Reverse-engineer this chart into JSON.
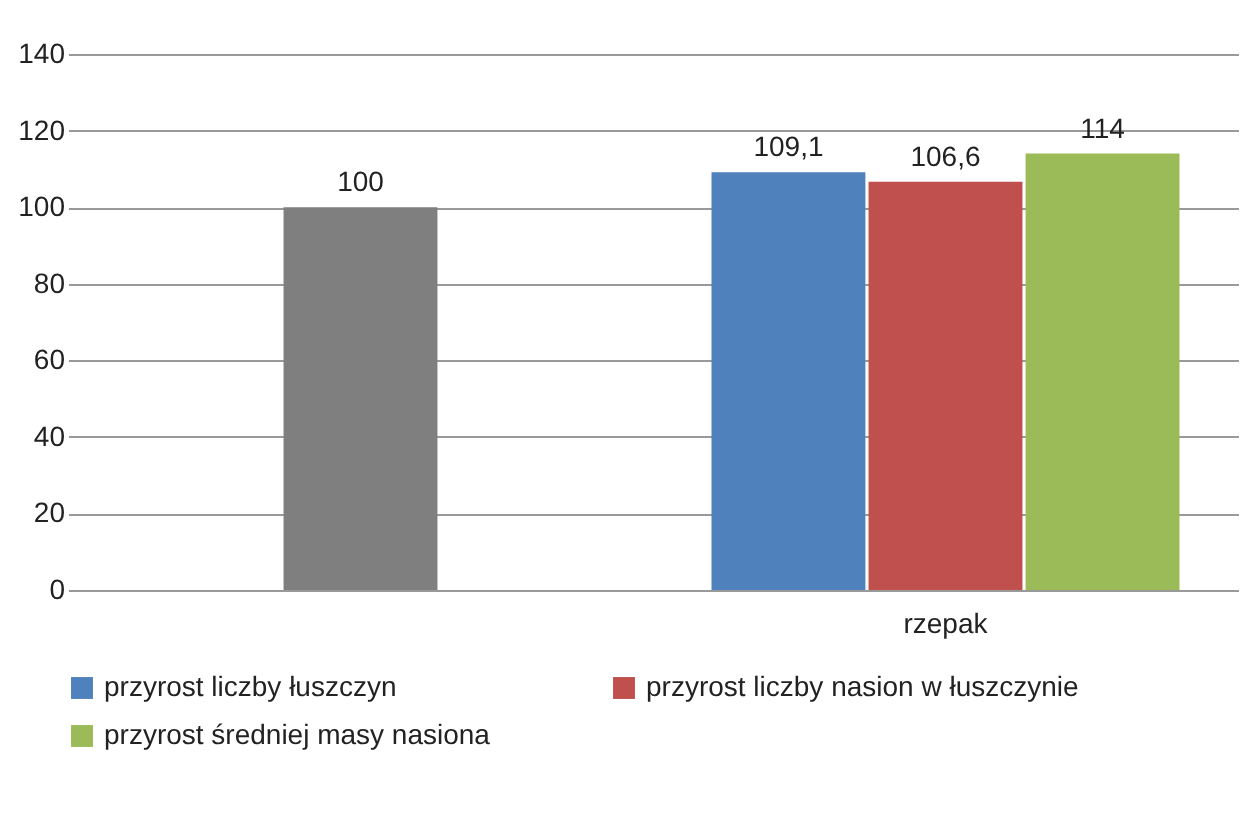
{
  "chart_data": {
    "type": "bar",
    "categories": [
      null,
      "rzepak"
    ],
    "series": [
      {
        "name": "przyrost liczby łuszczyn",
        "color": "#4f81bd",
        "values": [
          null,
          109.1
        ],
        "value_labels": [
          null,
          "109,1"
        ]
      },
      {
        "name": "przyrost liczby nasion w łuszczynie",
        "color": "#c0504d",
        "colors": [
          "#7f7f7f",
          "#c0504d"
        ],
        "values": [
          100,
          106.6
        ],
        "value_labels": [
          "100",
          "106,6"
        ]
      },
      {
        "name": "przyrost średniej masy nasiona",
        "color": "#9bbb59",
        "values": [
          null,
          114
        ],
        "value_labels": [
          null,
          "114"
        ]
      }
    ],
    "ylim": [
      0,
      140
    ],
    "yticks": [
      0,
      20,
      40,
      60,
      80,
      100,
      120,
      140
    ],
    "grid": "y",
    "legend": "bottom"
  }
}
